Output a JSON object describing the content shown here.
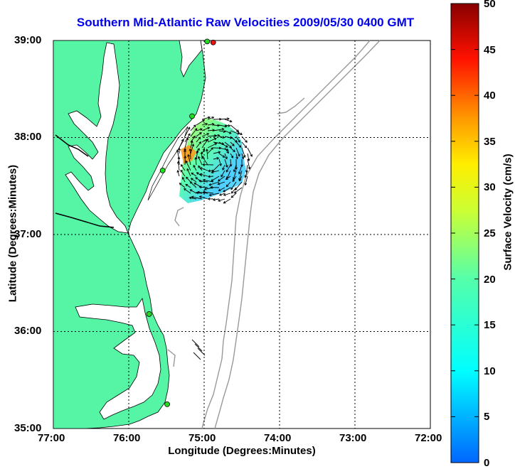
{
  "title": "Southern Mid-Atlantic Raw Velocities 2009/05/30 0400 GMT",
  "axes": {
    "xlabel": "Longitude (Degrees:Minutes)",
    "ylabel": "Latitude (Degrees:Minutes)",
    "x_ticks": [
      "77:00",
      "76:00",
      "75:00",
      "74:00",
      "73:00",
      "72:00"
    ],
    "y_ticks": [
      "39:00",
      "38:00",
      "37:00",
      "36:00",
      "35:00"
    ],
    "x_range": [
      -77,
      -72
    ],
    "y_range": [
      35,
      39
    ]
  },
  "colorbar": {
    "label": "Surface Velocity (cm/s)",
    "ticks": [
      "50",
      "45",
      "40",
      "35",
      "30",
      "25",
      "20",
      "15",
      "10",
      "5",
      "0"
    ],
    "range": [
      0,
      50
    ]
  },
  "colors": {
    "land": "#55f5a5",
    "coastline": "#000000",
    "bathymetry": "#999999",
    "grid": "#000000",
    "title": "#0000ee",
    "station_green": "#22dd22",
    "station_red": "#ee1111"
  },
  "stations": [
    {
      "lon": -74.88,
      "lat": 38.98,
      "color": "red"
    },
    {
      "lon": -74.96,
      "lat": 38.99,
      "color": "green"
    },
    {
      "lon": -75.16,
      "lat": 38.22,
      "color": "green"
    },
    {
      "lon": -75.55,
      "lat": 37.66,
      "color": "green"
    },
    {
      "lon": -75.73,
      "lat": 36.18,
      "color": "green"
    },
    {
      "lon": -75.49,
      "lat": 35.25,
      "color": "green"
    }
  ]
}
